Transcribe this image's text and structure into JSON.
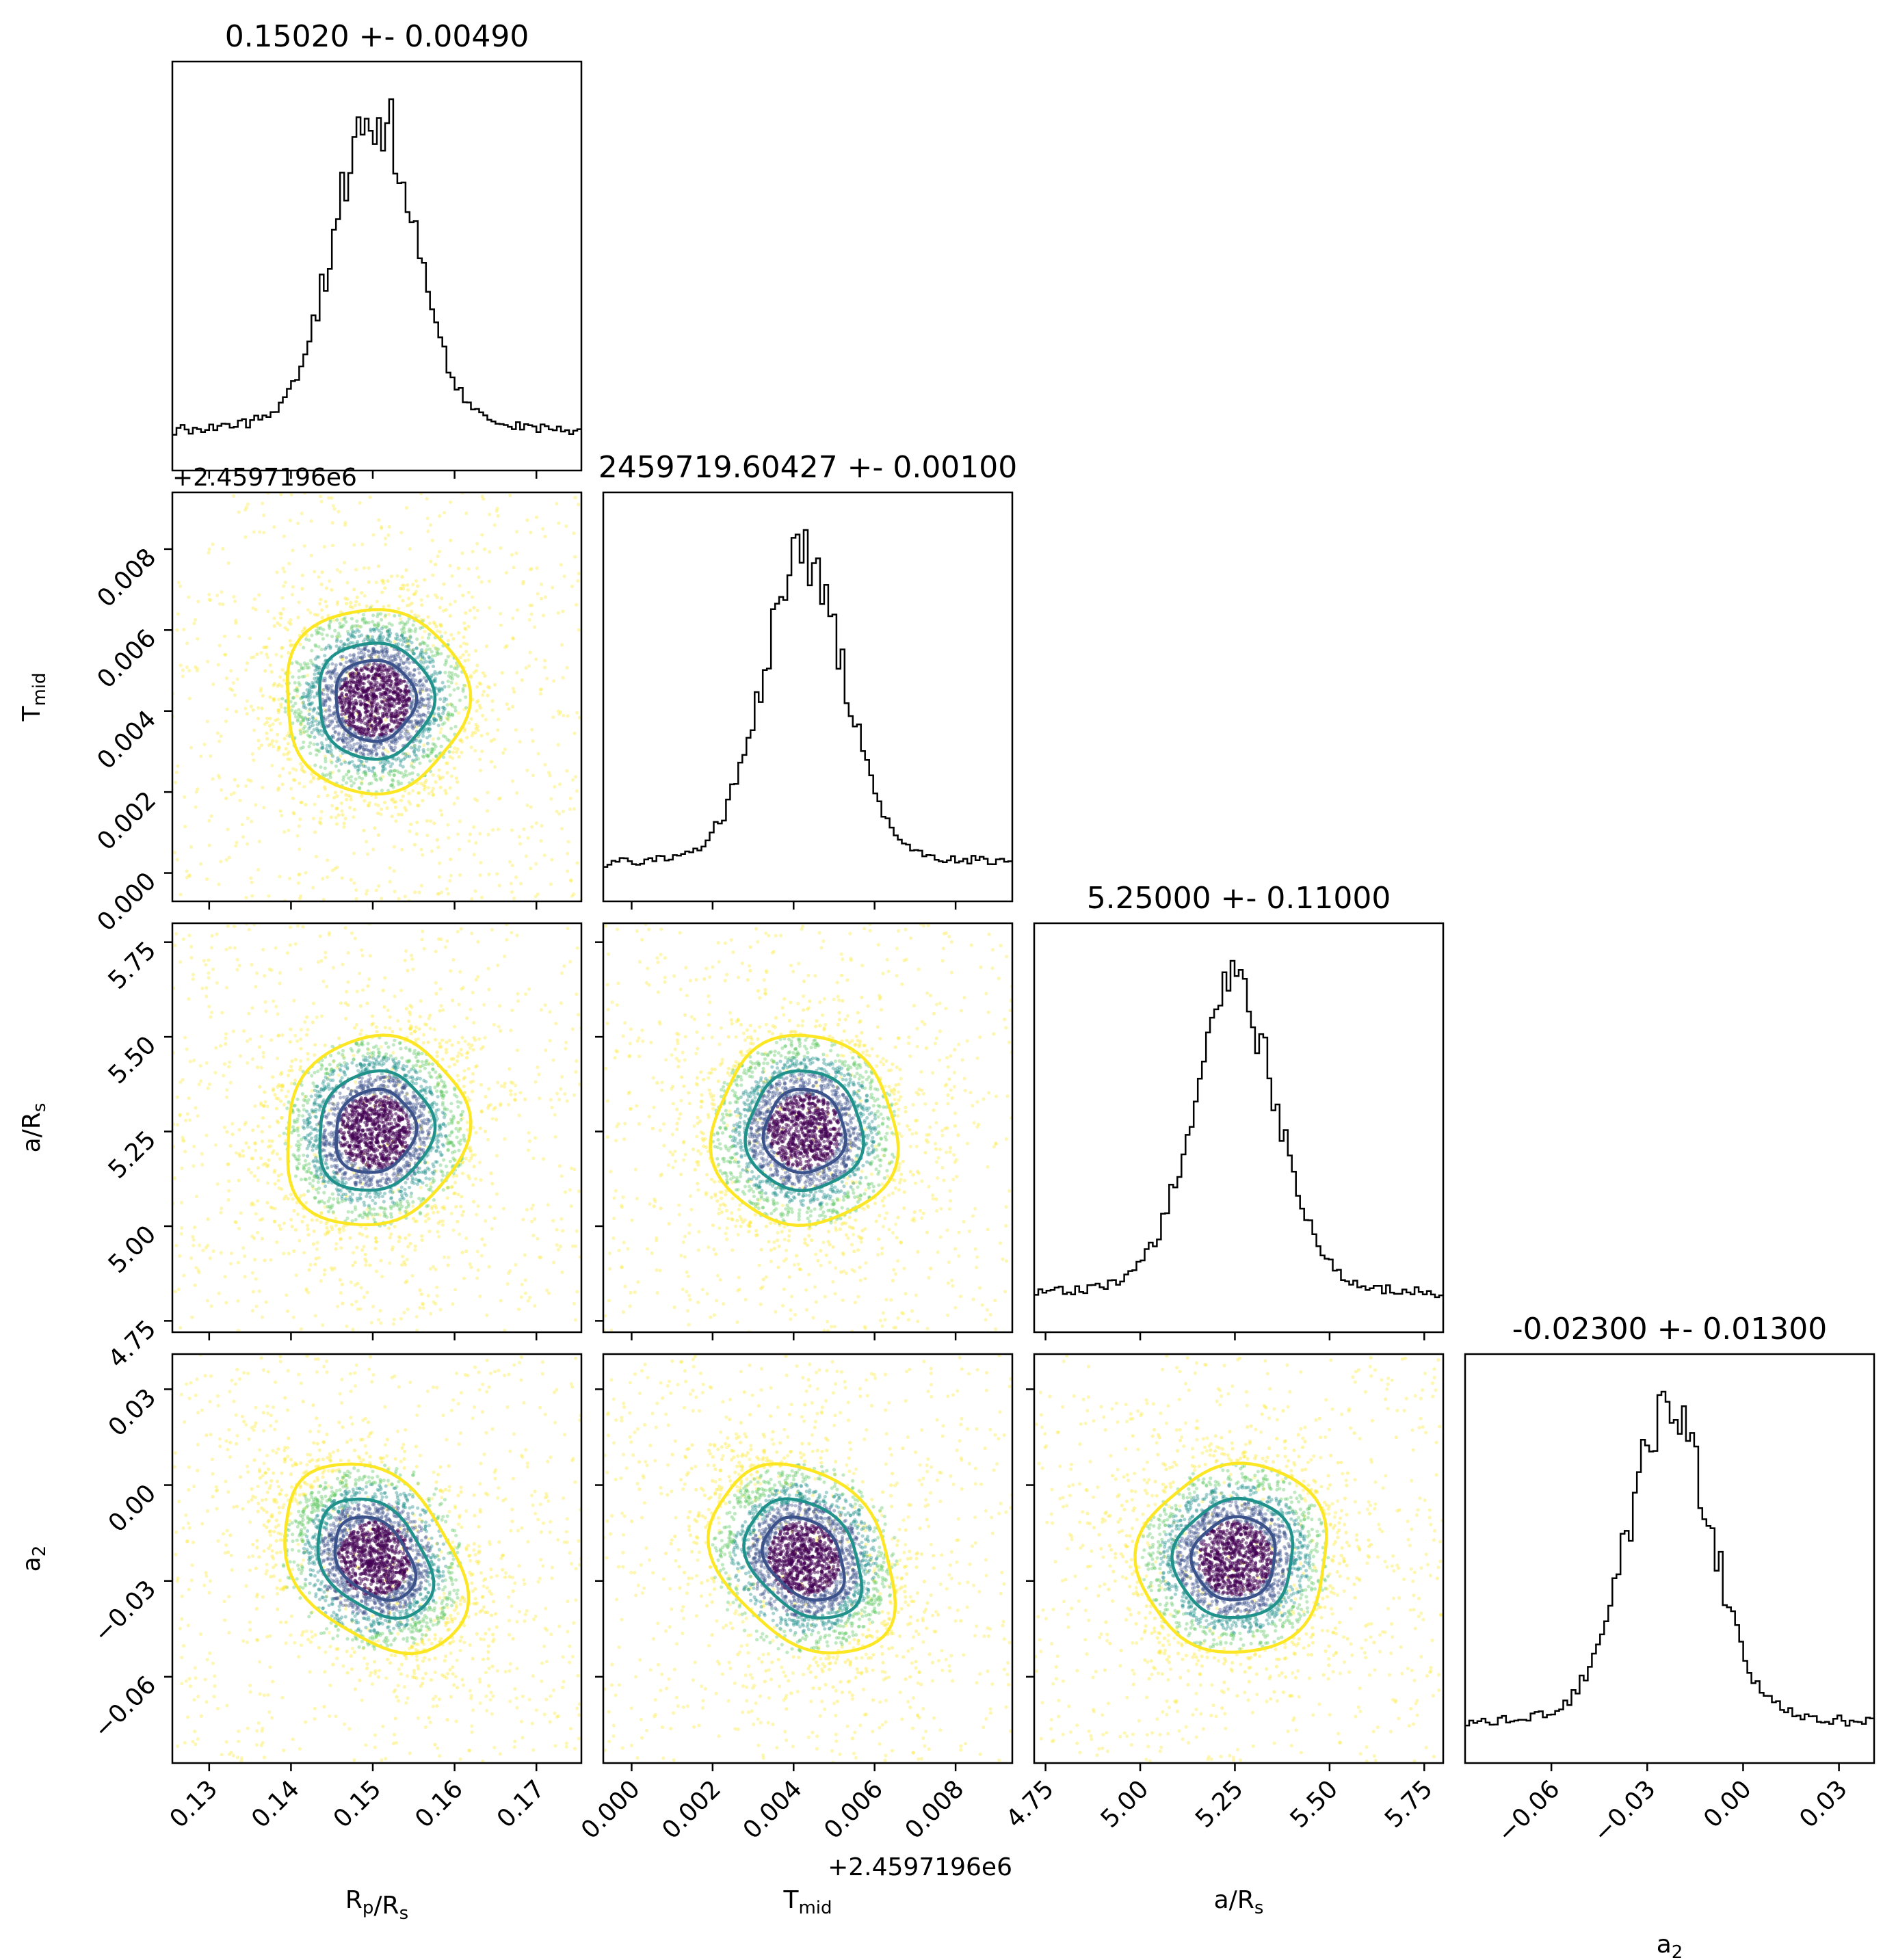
{
  "chart_data": {
    "type": "corner",
    "parameters": [
      {
        "key": "rp",
        "label_main": "R",
        "label_sub1": "p",
        "label_mid": "/R",
        "label_sub2": "s",
        "title": "0.15020 +- 0.00490",
        "mean": 0.1502,
        "sigma": 0.0049,
        "range": [
          0.1255,
          0.1755
        ],
        "ticks": [
          0.13,
          0.14,
          0.15,
          0.16,
          0.17
        ],
        "tick_labels": [
          "0.13",
          "0.14",
          "0.15",
          "0.16",
          "0.17"
        ],
        "offset": ""
      },
      {
        "key": "tmid",
        "label_main": "T",
        "label_sub1": "mid",
        "label_mid": "",
        "label_sub2": "",
        "title": "2459719.60427 +- 0.00100",
        "mean": 0.00427,
        "sigma": 0.001,
        "range": [
          -0.0007,
          0.0094
        ],
        "ticks": [
          0.0,
          0.002,
          0.004,
          0.006,
          0.008
        ],
        "tick_labels": [
          "0.000",
          "0.002",
          "0.004",
          "0.006",
          "0.008"
        ],
        "offset": "+2.4597196e6"
      },
      {
        "key": "ars",
        "label_main": "a/R",
        "label_sub1": "",
        "label_mid": "",
        "label_sub2": "s",
        "title": "5.25000 +- 0.11000",
        "mean": 5.25,
        "sigma": 0.11,
        "range": [
          4.72,
          5.8
        ],
        "ticks": [
          4.75,
          5.0,
          5.25,
          5.5,
          5.75
        ],
        "tick_labels": [
          "4.75",
          "5.00",
          "5.25",
          "5.50",
          "5.75"
        ],
        "offset": ""
      },
      {
        "key": "a2",
        "label_main": "a",
        "label_sub1": "2",
        "label_mid": "",
        "label_sub2": "",
        "title": "-0.02300 +- 0.01300",
        "mean": -0.023,
        "sigma": 0.013,
        "range": [
          -0.087,
          0.041
        ],
        "ticks": [
          -0.06,
          -0.03,
          0.0,
          0.03
        ],
        "tick_labels": [
          "−0.06",
          "−0.03",
          "0.00",
          "0.03"
        ],
        "offset": ""
      }
    ],
    "correlations": {
      "0-1": 0.0,
      "0-2": 0.1,
      "1-2": 0.0,
      "0-3": -0.35,
      "1-3": -0.3,
      "2-3": 0.05
    },
    "contour_colors": [
      "#fde725",
      "#21918c",
      "#3b528b"
    ],
    "point_colors": [
      "#fde725",
      "#5ec962",
      "#21918c",
      "#3b528b",
      "#440154"
    ],
    "histogram_style": "step",
    "grid": false
  }
}
